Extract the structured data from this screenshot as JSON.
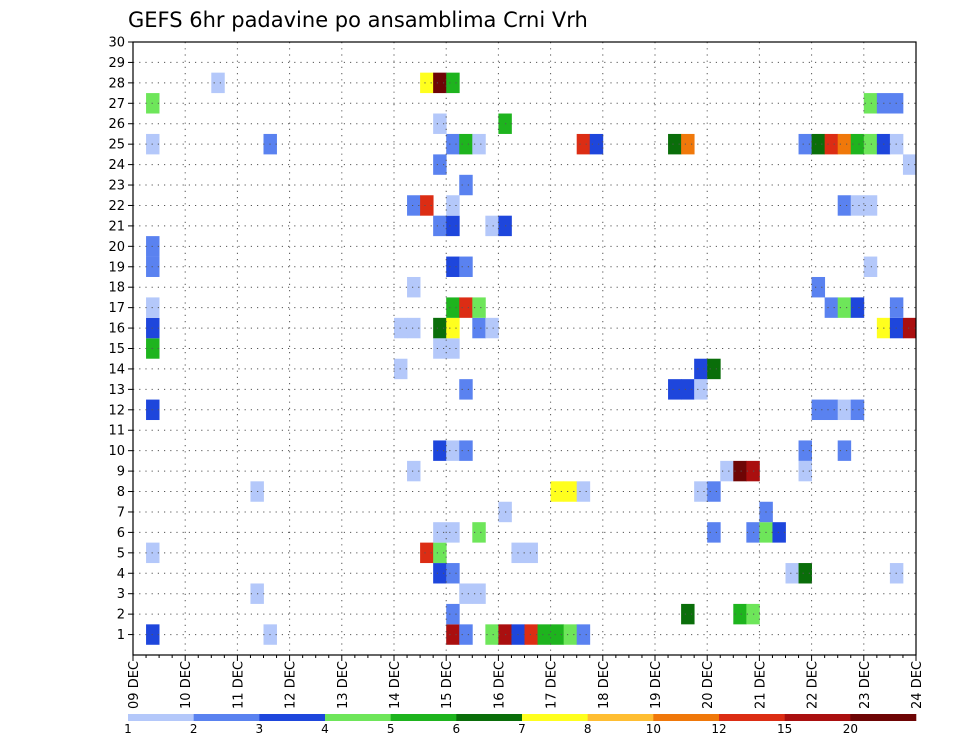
{
  "chart_data": {
    "type": "heatmap",
    "title": "GEFS 6hr padavine po ansamblima Crni Vrh",
    "xlabel": "",
    "ylabel": "",
    "x_tick_labels": [
      "09 DEC",
      "10 DEC",
      "11 DEC",
      "12 DEC",
      "13 DEC",
      "14 DEC",
      "15 DEC",
      "16 DEC",
      "17 DEC",
      "18 DEC",
      "19 DEC",
      "20 DEC",
      "21 DEC",
      "22 DEC",
      "23 DEC",
      "24 DEC"
    ],
    "xlim": [
      0,
      15
    ],
    "x_units": "days after 09 DEC, 6-hour steps",
    "y_tick_labels": [
      "1",
      "2",
      "3",
      "4",
      "5",
      "6",
      "7",
      "8",
      "9",
      "10",
      "11",
      "12",
      "13",
      "14",
      "15",
      "16",
      "17",
      "18",
      "19",
      "20",
      "21",
      "22",
      "23",
      "24",
      "25",
      "26",
      "27",
      "28",
      "29",
      "30"
    ],
    "ylim": [
      0,
      30
    ],
    "grid": true,
    "colorbar": {
      "labels": [
        "1",
        "2",
        "3",
        "4",
        "5",
        "6",
        "7",
        "8",
        "10",
        "12",
        "15",
        "20"
      ],
      "bounds": [
        1,
        2,
        3,
        4,
        5,
        6,
        7,
        8,
        10,
        12,
        15,
        20
      ],
      "colors": [
        "#b4c8fa",
        "#5a82f0",
        "#1e46dc",
        "#6ee65a",
        "#1eb41e",
        "#0a6e0a",
        "#ffff1e",
        "#ffbe32",
        "#f0780a",
        "#dc2d14",
        "#aa0f0f",
        "#6e0505"
      ]
    },
    "cells": [
      {
        "m": 1,
        "x": 0.25,
        "v": 3
      },
      {
        "m": 1,
        "x": 2.5,
        "v": 1
      },
      {
        "m": 1,
        "x": 6.0,
        "v": 15
      },
      {
        "m": 1,
        "x": 6.25,
        "v": 2
      },
      {
        "m": 1,
        "x": 6.75,
        "v": 4
      },
      {
        "m": 1,
        "x": 7.0,
        "v": 15
      },
      {
        "m": 1,
        "x": 7.25,
        "v": 3
      },
      {
        "m": 1,
        "x": 7.5,
        "v": 12
      },
      {
        "m": 1,
        "x": 7.75,
        "v": 5
      },
      {
        "m": 1,
        "x": 8.0,
        "v": 5
      },
      {
        "m": 1,
        "x": 8.25,
        "v": 4
      },
      {
        "m": 1,
        "x": 8.5,
        "v": 2
      },
      {
        "m": 2,
        "x": 6.0,
        "v": 2
      },
      {
        "m": 2,
        "x": 10.5,
        "v": 6
      },
      {
        "m": 2,
        "x": 11.5,
        "v": 5
      },
      {
        "m": 2,
        "x": 11.75,
        "v": 4
      },
      {
        "m": 3,
        "x": 2.25,
        "v": 1
      },
      {
        "m": 3,
        "x": 6.25,
        "v": 1
      },
      {
        "m": 3,
        "x": 6.5,
        "v": 1
      },
      {
        "m": 4,
        "x": 5.75,
        "v": 3
      },
      {
        "m": 4,
        "x": 6.0,
        "v": 2
      },
      {
        "m": 4,
        "x": 12.5,
        "v": 1
      },
      {
        "m": 4,
        "x": 12.75,
        "v": 6
      },
      {
        "m": 4,
        "x": 14.5,
        "v": 1
      },
      {
        "m": 5,
        "x": 0.25,
        "v": 1
      },
      {
        "m": 5,
        "x": 5.5,
        "v": 12
      },
      {
        "m": 5,
        "x": 5.75,
        "v": 4
      },
      {
        "m": 5,
        "x": 7.25,
        "v": 1
      },
      {
        "m": 5,
        "x": 7.5,
        "v": 1
      },
      {
        "m": 6,
        "x": 5.75,
        "v": 1
      },
      {
        "m": 6,
        "x": 6.0,
        "v": 1
      },
      {
        "m": 6,
        "x": 6.5,
        "v": 4
      },
      {
        "m": 6,
        "x": 11.0,
        "v": 2
      },
      {
        "m": 6,
        "x": 11.75,
        "v": 2
      },
      {
        "m": 6,
        "x": 12.0,
        "v": 4
      },
      {
        "m": 6,
        "x": 12.25,
        "v": 3
      },
      {
        "m": 7,
        "x": 7.0,
        "v": 1
      },
      {
        "m": 7,
        "x": 12.0,
        "v": 2
      },
      {
        "m": 8,
        "x": 2.25,
        "v": 1
      },
      {
        "m": 8,
        "x": 8.0,
        "v": 7
      },
      {
        "m": 8,
        "x": 8.25,
        "v": 7
      },
      {
        "m": 8,
        "x": 8.5,
        "v": 1
      },
      {
        "m": 8,
        "x": 10.75,
        "v": 1
      },
      {
        "m": 8,
        "x": 11.0,
        "v": 2
      },
      {
        "m": 9,
        "x": 5.25,
        "v": 1
      },
      {
        "m": 9,
        "x": 11.25,
        "v": 1
      },
      {
        "m": 9,
        "x": 11.5,
        "v": 20
      },
      {
        "m": 9,
        "x": 11.75,
        "v": 15
      },
      {
        "m": 9,
        "x": 12.75,
        "v": 1
      },
      {
        "m": 10,
        "x": 5.75,
        "v": 3
      },
      {
        "m": 10,
        "x": 6.0,
        "v": 1
      },
      {
        "m": 10,
        "x": 6.25,
        "v": 2
      },
      {
        "m": 10,
        "x": 12.75,
        "v": 2
      },
      {
        "m": 10,
        "x": 13.5,
        "v": 2
      },
      {
        "m": 12,
        "x": 0.25,
        "v": 3
      },
      {
        "m": 12,
        "x": 13.0,
        "v": 2
      },
      {
        "m": 12,
        "x": 13.25,
        "v": 2
      },
      {
        "m": 12,
        "x": 13.5,
        "v": 1
      },
      {
        "m": 12,
        "x": 13.75,
        "v": 2
      },
      {
        "m": 13,
        "x": 6.25,
        "v": 2
      },
      {
        "m": 13,
        "x": 10.25,
        "v": 3
      },
      {
        "m": 13,
        "x": 10.5,
        "v": 3
      },
      {
        "m": 13,
        "x": 10.75,
        "v": 1
      },
      {
        "m": 14,
        "x": 5.0,
        "v": 1
      },
      {
        "m": 14,
        "x": 10.75,
        "v": 3
      },
      {
        "m": 14,
        "x": 11.0,
        "v": 6
      },
      {
        "m": 15,
        "x": 0.25,
        "v": 5
      },
      {
        "m": 15,
        "x": 5.75,
        "v": 1
      },
      {
        "m": 15,
        "x": 6.0,
        "v": 1
      },
      {
        "m": 16,
        "x": 0.25,
        "v": 3
      },
      {
        "m": 16,
        "x": 5.0,
        "v": 1
      },
      {
        "m": 16,
        "x": 5.25,
        "v": 1
      },
      {
        "m": 16,
        "x": 5.75,
        "v": 6
      },
      {
        "m": 16,
        "x": 6.0,
        "v": 7
      },
      {
        "m": 16,
        "x": 6.5,
        "v": 2
      },
      {
        "m": 16,
        "x": 6.75,
        "v": 1
      },
      {
        "m": 16,
        "x": 14.25,
        "v": 7
      },
      {
        "m": 16,
        "x": 14.5,
        "v": 3
      },
      {
        "m": 16,
        "x": 14.75,
        "v": 15
      },
      {
        "m": 17,
        "x": 0.25,
        "v": 1
      },
      {
        "m": 17,
        "x": 6.0,
        "v": 5
      },
      {
        "m": 17,
        "x": 6.25,
        "v": 12
      },
      {
        "m": 17,
        "x": 6.5,
        "v": 4
      },
      {
        "m": 17,
        "x": 13.25,
        "v": 2
      },
      {
        "m": 17,
        "x": 13.5,
        "v": 4
      },
      {
        "m": 17,
        "x": 13.75,
        "v": 3
      },
      {
        "m": 17,
        "x": 14.5,
        "v": 2
      },
      {
        "m": 18,
        "x": 5.25,
        "v": 1
      },
      {
        "m": 18,
        "x": 13.0,
        "v": 2
      },
      {
        "m": 19,
        "x": 0.25,
        "v": 2
      },
      {
        "m": 19,
        "x": 6.0,
        "v": 3
      },
      {
        "m": 19,
        "x": 6.25,
        "v": 2
      },
      {
        "m": 19,
        "x": 14.0,
        "v": 1
      },
      {
        "m": 20,
        "x": 0.25,
        "v": 2
      },
      {
        "m": 21,
        "x": 5.75,
        "v": 2
      },
      {
        "m": 21,
        "x": 6.0,
        "v": 3
      },
      {
        "m": 21,
        "x": 6.75,
        "v": 1
      },
      {
        "m": 21,
        "x": 7.0,
        "v": 3
      },
      {
        "m": 22,
        "x": 5.25,
        "v": 2
      },
      {
        "m": 22,
        "x": 5.5,
        "v": 12
      },
      {
        "m": 22,
        "x": 6.0,
        "v": 1
      },
      {
        "m": 22,
        "x": 13.5,
        "v": 2
      },
      {
        "m": 22,
        "x": 13.75,
        "v": 1
      },
      {
        "m": 22,
        "x": 14.0,
        "v": 1
      },
      {
        "m": 23,
        "x": 6.25,
        "v": 2
      },
      {
        "m": 24,
        "x": 5.75,
        "v": 2
      },
      {
        "m": 24,
        "x": 14.75,
        "v": 1
      },
      {
        "m": 25,
        "x": 0.25,
        "v": 1
      },
      {
        "m": 25,
        "x": 2.5,
        "v": 2
      },
      {
        "m": 25,
        "x": 6.0,
        "v": 2
      },
      {
        "m": 25,
        "x": 6.25,
        "v": 5
      },
      {
        "m": 25,
        "x": 6.5,
        "v": 1
      },
      {
        "m": 25,
        "x": 8.5,
        "v": 12
      },
      {
        "m": 25,
        "x": 8.75,
        "v": 3
      },
      {
        "m": 25,
        "x": 10.25,
        "v": 6
      },
      {
        "m": 25,
        "x": 10.5,
        "v": 10
      },
      {
        "m": 25,
        "x": 12.75,
        "v": 2
      },
      {
        "m": 25,
        "x": 13.0,
        "v": 6
      },
      {
        "m": 25,
        "x": 13.25,
        "v": 12
      },
      {
        "m": 25,
        "x": 13.5,
        "v": 10
      },
      {
        "m": 25,
        "x": 13.75,
        "v": 5
      },
      {
        "m": 25,
        "x": 14.0,
        "v": 4
      },
      {
        "m": 25,
        "x": 14.25,
        "v": 3
      },
      {
        "m": 25,
        "x": 14.5,
        "v": 1
      },
      {
        "m": 26,
        "x": 5.75,
        "v": 1
      },
      {
        "m": 26,
        "x": 7.0,
        "v": 5
      },
      {
        "m": 27,
        "x": 0.25,
        "v": 4
      },
      {
        "m": 27,
        "x": 14.0,
        "v": 4
      },
      {
        "m": 27,
        "x": 14.25,
        "v": 2
      },
      {
        "m": 27,
        "x": 14.5,
        "v": 2
      },
      {
        "m": 28,
        "x": 1.5,
        "v": 1
      },
      {
        "m": 28,
        "x": 5.5,
        "v": 7
      },
      {
        "m": 28,
        "x": 5.75,
        "v": 20
      },
      {
        "m": 28,
        "x": 6.0,
        "v": 5
      }
    ]
  }
}
